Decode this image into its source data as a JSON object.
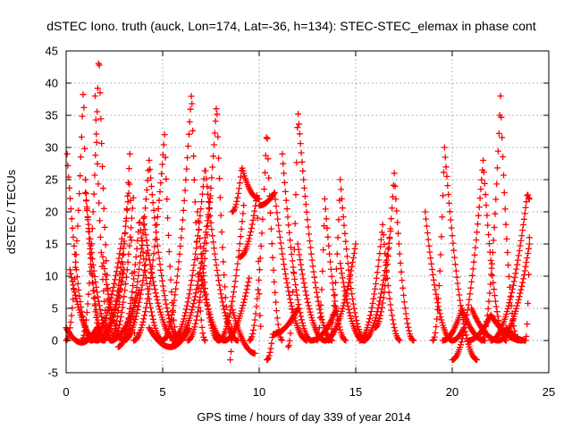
{
  "chart_data": {
    "type": "scatter",
    "title": "dSTEC Iono. truth (auck, Lon=174, Lat=-36, h=134): STEC-STEC_elemax in phase cont",
    "xlabel": "GPS time / hours of day 339 of year 2014",
    "ylabel": "dSTEC  / TECUs",
    "xlim": [
      0,
      25
    ],
    "ylim": [
      -5,
      45
    ],
    "xticks": [
      0,
      5,
      10,
      15,
      20,
      25
    ],
    "yticks": [
      -5,
      0,
      5,
      10,
      15,
      20,
      25,
      30,
      35,
      40,
      45
    ],
    "grid": true,
    "marker": "plus",
    "color": "#ff0000",
    "sample_step_hours": 0.04,
    "passes": [
      {
        "t": [
          0.0,
          0.8,
          1.6
        ],
        "y": [
          2,
          -0.3,
          2
        ]
      },
      {
        "t": [
          0.05,
          1.3,
          2.9
        ],
        "y": [
          29,
          0,
          16
        ]
      },
      {
        "t": [
          0.0,
          0.9,
          1.1,
          2.0
        ],
        "y": [
          0,
          40,
          20,
          0
        ]
      },
      {
        "t": [
          1.0,
          1.9,
          3.3
        ],
        "y": [
          25,
          0,
          25
        ]
      },
      {
        "t": [
          0.8,
          1.7,
          2.5
        ],
        "y": [
          0,
          45,
          0
        ]
      },
      {
        "t": [
          0.2,
          1.6,
          3.0
        ],
        "y": [
          11,
          0,
          11
        ]
      },
      {
        "t": [
          1.0,
          2.4,
          3.5
        ],
        "y": [
          23,
          0,
          23
        ]
      },
      {
        "t": [
          1.5,
          2.3,
          3.8
        ],
        "y": [
          38,
          0,
          8
        ]
      },
      {
        "t": [
          1.9,
          3.0,
          4.2
        ],
        "y": [
          13,
          0,
          14
        ]
      },
      {
        "t": [
          2.3,
          3.3,
          3.6
        ],
        "y": [
          0,
          29,
          0
        ]
      },
      {
        "t": [
          2.7,
          3.8,
          5.0
        ],
        "y": [
          -1,
          19,
          0
        ]
      },
      {
        "t": [
          2.9,
          4.3,
          5.9
        ],
        "y": [
          0,
          28,
          0
        ]
      },
      {
        "t": [
          3.5,
          5.1,
          5.8
        ],
        "y": [
          0,
          32,
          0
        ]
      },
      {
        "t": [
          4.0,
          5.7,
          7.5
        ],
        "y": [
          19,
          0,
          23
        ]
      },
      {
        "t": [
          4.3,
          5.4,
          6.4
        ],
        "y": [
          2,
          -1,
          2
        ]
      },
      {
        "t": [
          5.0,
          6.5,
          7.2
        ],
        "y": [
          0,
          39,
          0
        ]
      },
      {
        "t": [
          5.5,
          7.2,
          8.9
        ],
        "y": [
          0,
          27,
          0
        ]
      },
      {
        "t": [
          6.3,
          7.8,
          8.6
        ],
        "y": [
          0,
          37,
          0
        ]
      },
      {
        "t": [
          6.8,
          7.9,
          9.2
        ],
        "y": [
          20,
          0,
          21
        ]
      },
      {
        "t": [
          7.0,
          8.2,
          9.5
        ],
        "y": [
          10,
          0,
          10
        ]
      },
      {
        "t": [
          8.5,
          8.6,
          9.8
        ],
        "y": [
          -3,
          5,
          -2
        ]
      },
      {
        "t": [
          8.6,
          9.1,
          10.0
        ],
        "y": [
          20,
          27,
          22
        ]
      },
      {
        "t": [
          9.0,
          9.9,
          10.1
        ],
        "y": [
          13,
          23,
          2
        ]
      },
      {
        "t": [
          9.5,
          10.4,
          11.2
        ],
        "y": [
          0,
          33,
          0
        ]
      },
      {
        "t": [
          10.0,
          10.8,
          12.5
        ],
        "y": [
          21,
          23,
          0
        ]
      },
      {
        "t": [
          10.4,
          10.7,
          12.0
        ],
        "y": [
          -3,
          1,
          5
        ]
      },
      {
        "t": [
          11.5,
          12.0,
          13.8
        ],
        "y": [
          -1,
          36,
          0
        ]
      },
      {
        "t": [
          11.2,
          12.7,
          14.0
        ],
        "y": [
          29,
          0,
          5
        ]
      },
      {
        "t": [
          12.0,
          13.4,
          15.0
        ],
        "y": [
          15,
          0,
          15
        ]
      },
      {
        "t": [
          13.0,
          13.4,
          14.5
        ],
        "y": [
          0,
          22,
          0
        ]
      },
      {
        "t": [
          13.6,
          14.2,
          15.5
        ],
        "y": [
          0,
          25,
          0
        ]
      },
      {
        "t": [
          14.2,
          15.4,
          16.8
        ],
        "y": [
          12,
          0,
          17
        ]
      },
      {
        "t": [
          15.2,
          16.4,
          17.3
        ],
        "y": [
          0,
          18,
          0
        ]
      },
      {
        "t": [
          16.0,
          17.0,
          18.0
        ],
        "y": [
          2,
          26,
          0
        ]
      },
      {
        "t": [
          18.6,
          20.0,
          20.6
        ],
        "y": [
          20,
          0,
          2
        ]
      },
      {
        "t": [
          19.0,
          19.6,
          21.3
        ],
        "y": [
          0,
          30,
          -3
        ]
      },
      {
        "t": [
          19.5,
          20.5,
          21.7
        ],
        "y": [
          0,
          5,
          0
        ]
      },
      {
        "t": [
          20.0,
          21.6,
          22.8
        ],
        "y": [
          -3,
          28,
          0
        ]
      },
      {
        "t": [
          20.8,
          22.0,
          23.6
        ],
        "y": [
          0,
          4,
          0
        ]
      },
      {
        "t": [
          21.5,
          22.5,
          23.4
        ],
        "y": [
          0,
          38,
          0
        ]
      },
      {
        "t": [
          22.0,
          23.9,
          24.0
        ],
        "y": [
          0,
          23,
          22
        ]
      },
      {
        "t": [
          21.0,
          22.4,
          24.0
        ],
        "y": [
          5,
          0,
          15
        ]
      },
      {
        "t": [
          22.8,
          23.8,
          24.0
        ],
        "y": [
          2,
          0,
          16
        ]
      }
    ]
  }
}
